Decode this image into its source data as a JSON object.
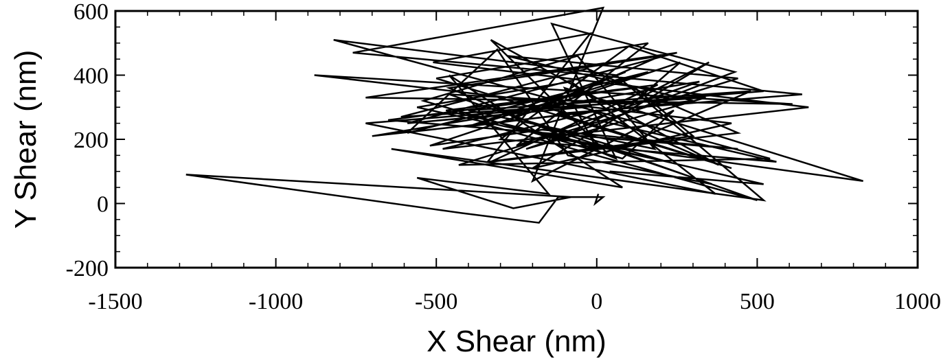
{
  "chart_data": {
    "type": "line",
    "xlabel": "X Shear (nm)",
    "ylabel": "Y Shear (nm)",
    "xlim": [
      -1500,
      1000
    ],
    "ylim": [
      -200,
      600
    ],
    "x_ticks": [
      -1500,
      -1000,
      -500,
      0,
      500,
      1000
    ],
    "x_tick_labels": [
      "-1500",
      "-1000",
      "-500",
      "0",
      "500",
      "1000"
    ],
    "y_ticks": [
      -200,
      0,
      200,
      400,
      600
    ],
    "y_tick_labels": [
      "-200",
      "0",
      "200",
      "400",
      "600"
    ],
    "grid": false,
    "line_color": "#000000",
    "series": [
      {
        "x": [
          5,
          -5,
          20,
          -120,
          -180,
          -420,
          -1280,
          -80,
          -260,
          -560,
          -150,
          -460,
          80,
          -640,
          520,
          60,
          -820,
          540,
          -430,
          440,
          -280,
          300,
          -700,
          320,
          -250,
          160,
          -500,
          420,
          -120,
          640,
          -760,
          20,
          -200,
          240,
          80,
          -540,
          -60,
          180,
          -400,
          480,
          30,
          -330,
          380,
          -40,
          -590,
          250,
          -720,
          610,
          -880,
          420,
          -200,
          350,
          -120,
          830,
          -100,
          -10,
          500,
          -360,
          160,
          -590,
          -310,
          -90,
          360,
          -460,
          110,
          260,
          -520,
          -170,
          440,
          -650,
          120,
          300,
          -340,
          -20,
          -510,
          660,
          -480,
          0,
          -400,
          90,
          -260,
          220,
          -560,
          -80,
          370,
          -720,
          520,
          100,
          -300,
          560,
          -170,
          200,
          -460,
          60,
          -140,
          430,
          10,
          -220,
          340,
          -610,
          -30,
          440,
          -330,
          190,
          -470,
          520,
          40
        ],
        "y": [
          30,
          0,
          20,
          20,
          -60,
          -30,
          90,
          20,
          -15,
          80,
          30,
          400,
          50,
          170,
          10,
          400,
          510,
          140,
          120,
          390,
          460,
          320,
          210,
          380,
          180,
          500,
          390,
          110,
          280,
          340,
          470,
          610,
          70,
          290,
          140,
          320,
          460,
          170,
          290,
          350,
          160,
          510,
          120,
          300,
          250,
          470,
          330,
          310,
          400,
          250,
          110,
          440,
          200,
          70,
          360,
          190,
          10,
          250,
          410,
          220,
          480,
          150,
          60,
          340,
          310,
          440,
          180,
          230,
          170,
          260,
          360,
          210,
          130,
          530,
          440,
          300,
          170,
          290,
          240,
          410,
          270,
          130,
          300,
          380,
          30,
          250,
          350,
          490,
          200,
          130,
          300,
          460,
          360,
          140,
          560,
          410,
          250,
          170,
          330,
          270,
          420,
          220,
          130,
          370,
          290,
          60,
          100
        ]
      }
    ]
  }
}
